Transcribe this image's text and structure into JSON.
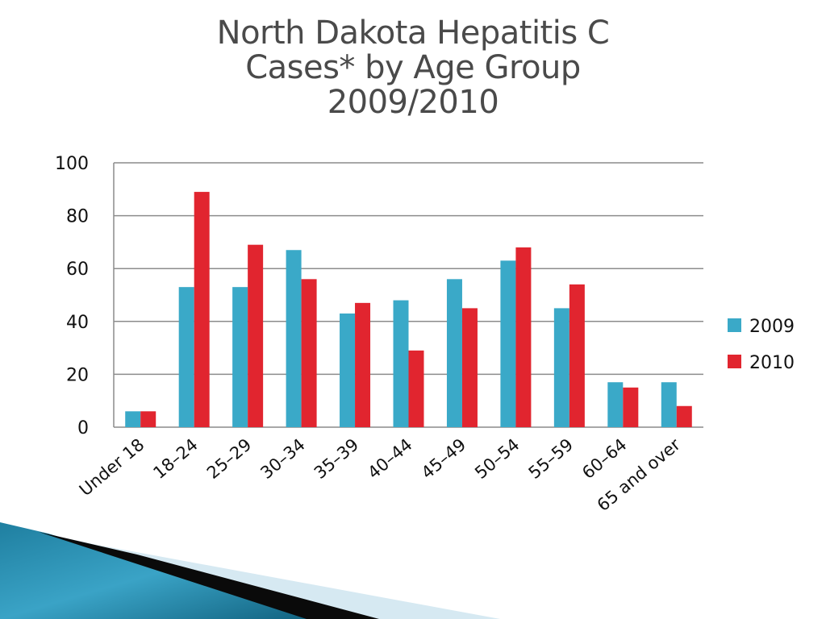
{
  "slide": {
    "title_lines": [
      "North Dakota Hepatitis C",
      "Cases* by Age Group",
      "2009/2010"
    ]
  },
  "colors": {
    "series_2009": "#3aa9c8",
    "series_2010": "#e1252f",
    "grid": "#8c8c8c",
    "title": "#4a4a4a"
  },
  "chart_data": {
    "type": "bar",
    "title": "North Dakota Hepatitis C Cases* by Age Group 2009/2010",
    "categories": [
      "Under 18",
      "18–24",
      "25–29",
      "30–34",
      "35–39",
      "40–44",
      "45–49",
      "50–54",
      "55–59",
      "60–64",
      "65 and over"
    ],
    "series": [
      {
        "name": "2009",
        "values": [
          6,
          53,
          53,
          67,
          43,
          48,
          56,
          63,
          45,
          17,
          17
        ]
      },
      {
        "name": "2010",
        "values": [
          6,
          89,
          69,
          56,
          47,
          29,
          45,
          68,
          54,
          15,
          8
        ]
      }
    ],
    "ylim": [
      0,
      100
    ],
    "yticks": [
      0,
      20,
      40,
      60,
      80,
      100
    ],
    "grid": true,
    "legend_position": "right"
  }
}
